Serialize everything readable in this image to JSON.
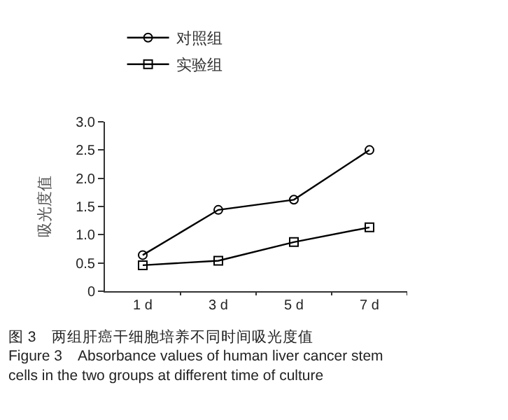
{
  "chart_data": {
    "type": "line",
    "categories": [
      "1 d",
      "3 d",
      "5 d",
      "7 d"
    ],
    "series": [
      {
        "name": "对照组",
        "color": "#000000",
        "marker": "circle",
        "values": [
          0.64,
          1.44,
          1.62,
          2.5
        ]
      },
      {
        "name": "实验组",
        "color": "#000000",
        "marker": "square",
        "values": [
          0.46,
          0.54,
          0.87,
          1.13
        ]
      }
    ],
    "ylabel": "吸光度值",
    "ylim": [
      0,
      3
    ],
    "yticks": [
      0,
      {
        "value": 0.5,
        "label": "0.5"
      },
      {
        "value": 1,
        "label": "1.0"
      },
      {
        "value": 1.5,
        "label": "1.5"
      },
      {
        "value": 2,
        "label": "2.0"
      },
      {
        "value": 2.5,
        "label": "2.5"
      },
      {
        "value": 3,
        "label": "3.0"
      }
    ],
    "legend": "top left",
    "line_style": "solid",
    "annotations": [
      "图 3　两组肝癌干细胞培养不同时间吸光度值",
      "Figure 3　Absorbance values of human liver cancer stem cells in the two groups at different time of culture"
    ]
  }
}
